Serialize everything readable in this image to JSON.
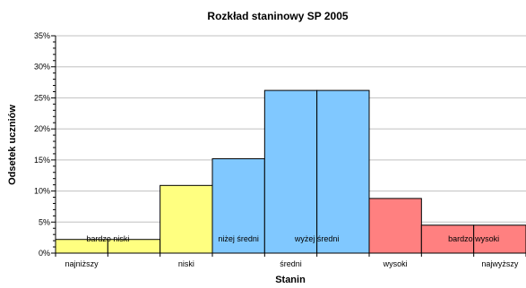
{
  "chart_data": {
    "type": "bar",
    "title": "Rozkład staninowy SP 2005",
    "xlabel": "Stanin",
    "ylabel": "Odsetek uczniów",
    "ylim": [
      0,
      35
    ],
    "yticks": [
      0,
      5,
      10,
      15,
      20,
      25,
      30,
      35
    ],
    "ytick_labels": [
      "0%",
      "5%",
      "10%",
      "15%",
      "20%",
      "25%",
      "30%",
      "35%"
    ],
    "grid": true,
    "categories": [
      1,
      2,
      3,
      4,
      5,
      6,
      7,
      8,
      9
    ],
    "values": [
      2.2,
      2.2,
      10.9,
      15.2,
      26.2,
      26.2,
      8.8,
      4.5,
      4.5
    ],
    "bar_colors": [
      "#ffff80",
      "#ffff80",
      "#ffff80",
      "#80c8ff",
      "#80c8ff",
      "#80c8ff",
      "#ff8080",
      "#ff8080",
      "#ff8080"
    ],
    "bar_labels": [
      {
        "text": "bardzo niski",
        "between": [
          1,
          2
        ]
      },
      {
        "text": "niżej średni",
        "at": 4
      },
      {
        "text": "wyżej średni",
        "between": [
          5,
          6
        ]
      },
      {
        "text": "bardzo wysoki",
        "between": [
          8,
          9
        ]
      }
    ],
    "xtick_labels": [
      {
        "text": "najniższy",
        "at": 1
      },
      {
        "text": "niski",
        "at": 3
      },
      {
        "text": "średni",
        "at": 5
      },
      {
        "text": "wysoki",
        "at": 7
      },
      {
        "text": "najwyższy",
        "at": 9
      }
    ]
  }
}
